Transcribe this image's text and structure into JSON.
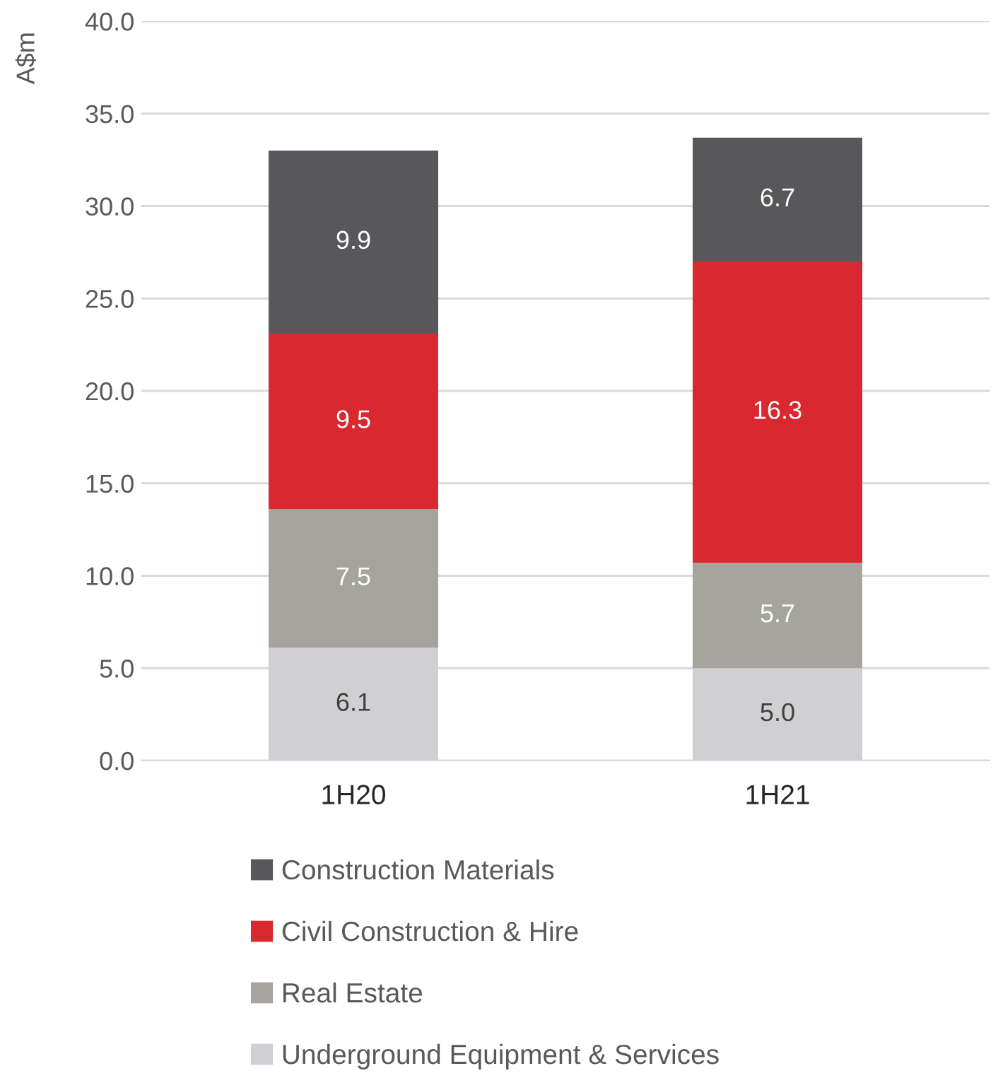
{
  "chart_data": {
    "type": "bar",
    "stacked": true,
    "ylabel": "A$m",
    "categories": [
      "1H20",
      "1H21"
    ],
    "series": [
      {
        "name": "Underground Equipment & Services",
        "color": "#d0d0d2",
        "values": [
          6.1,
          5.0
        ],
        "value_labels": [
          "6.1",
          "5.0"
        ]
      },
      {
        "name": "Real Estate",
        "color": "#a5a59e",
        "values": [
          7.5,
          5.7
        ]
      },
      {
        "name": "Civil Construction & Hire",
        "color": "#d9282f",
        "values": [
          9.5,
          16.3
        ]
      },
      {
        "name": "Construction Materials",
        "color": "#58585a",
        "values": [
          9.9,
          6.7
        ]
      }
    ],
    "data_labels": true,
    "ylim": [
      0,
      40
    ],
    "yticks": [
      {
        "value": 0,
        "label": "0.0"
      },
      {
        "value": 5,
        "label": "5.0"
      },
      {
        "value": 10,
        "label": "10.0"
      },
      {
        "value": 15,
        "label": "15.0"
      },
      {
        "value": 20,
        "label": "20.0"
      },
      {
        "value": 25,
        "label": "25.0"
      },
      {
        "value": 30,
        "label": "30.0"
      },
      {
        "value": 35,
        "label": "35.0"
      },
      {
        "value": 40,
        "label": "40.0"
      }
    ],
    "grid": "y",
    "legend": "bottom"
  }
}
